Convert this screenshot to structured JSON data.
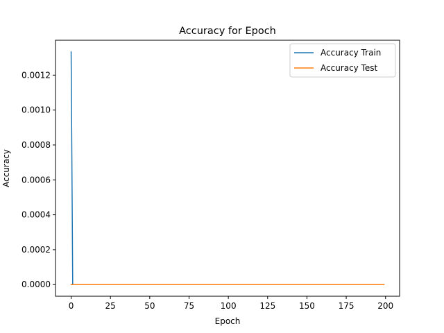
{
  "chart_data": {
    "type": "line",
    "title": "Accuracy for Epoch",
    "xlabel": "Epoch",
    "ylabel": "Accuracy",
    "xlim": [
      -9.95,
      208.95
    ],
    "ylim": [
      -6.67e-05,
      0.0014
    ],
    "xticks": [
      0,
      25,
      50,
      75,
      100,
      125,
      150,
      175,
      200
    ],
    "yticks": [
      0.0,
      0.0002,
      0.0004,
      0.0006,
      0.0008,
      0.001,
      0.0012
    ],
    "xtick_labels": [
      "0",
      "25",
      "50",
      "75",
      "100",
      "125",
      "150",
      "175",
      "200"
    ],
    "ytick_labels": [
      "0.0000",
      "0.0002",
      "0.0004",
      "0.0006",
      "0.0008",
      "0.0010",
      "0.0012"
    ],
    "grid": false,
    "legend_position": "upper right",
    "series": [
      {
        "name": "Accuracy Train",
        "color": "#1f77b4",
        "x": [
          0,
          1,
          2,
          199
        ],
        "y": [
          0.001333,
          0.0,
          0.0,
          0.0
        ]
      },
      {
        "name": "Accuracy Test",
        "color": "#ff7f0e",
        "x": [
          0,
          199
        ],
        "y": [
          0.0,
          0.0
        ]
      }
    ]
  }
}
